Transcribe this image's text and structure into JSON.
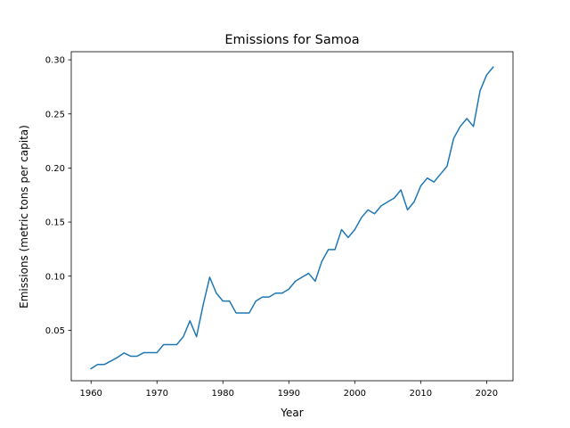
{
  "chart_data": {
    "type": "line",
    "title": "Emissions for Samoa",
    "xlabel": "Year",
    "ylabel": "Emissions (metric tons per capita)",
    "xlim": [
      1957,
      2024
    ],
    "ylim": [
      0.0033,
      0.3075
    ],
    "xticks": [
      1960,
      1970,
      1980,
      1990,
      2000,
      2010,
      2020
    ],
    "yticks": [
      0.05,
      0.1,
      0.15,
      0.2,
      0.25,
      0.3
    ],
    "ytick_labels": [
      "0.05",
      "0.10",
      "0.15",
      "0.20",
      "0.25",
      "0.30"
    ],
    "grid": false,
    "series_color": "#1f77b4",
    "x": [
      1960,
      1961,
      1962,
      1963,
      1964,
      1965,
      1966,
      1967,
      1968,
      1969,
      1970,
      1971,
      1972,
      1973,
      1974,
      1975,
      1976,
      1977,
      1978,
      1979,
      1980,
      1981,
      1982,
      1983,
      1984,
      1985,
      1986,
      1987,
      1988,
      1989,
      1990,
      1991,
      1992,
      1993,
      1994,
      1995,
      1996,
      1997,
      1998,
      1999,
      2000,
      2001,
      2002,
      2003,
      2004,
      2005,
      2006,
      2007,
      2008,
      2009,
      2010,
      2011,
      2012,
      2013,
      2014,
      2015,
      2016,
      2017,
      2018,
      2019,
      2020,
      2021
    ],
    "series": [
      {
        "values": [
          0.0145,
          0.0183,
          0.0183,
          0.0215,
          0.0248,
          0.029,
          0.026,
          0.026,
          0.0293,
          0.0293,
          0.0293,
          0.0367,
          0.0367,
          0.0367,
          0.044,
          0.0587,
          0.044,
          0.0733,
          0.099,
          0.0843,
          0.077,
          0.077,
          0.066,
          0.066,
          0.066,
          0.077,
          0.0807,
          0.0807,
          0.0843,
          0.0843,
          0.088,
          0.0953,
          0.099,
          0.1026,
          0.0953,
          0.1136,
          0.1246,
          0.1246,
          0.143,
          0.1357,
          0.143,
          0.154,
          0.1613,
          0.1577,
          0.165,
          0.1687,
          0.1723,
          0.1797,
          0.1613,
          0.1687,
          0.1833,
          0.1907,
          0.187,
          0.1943,
          0.2017,
          0.2274,
          0.2384,
          0.2457,
          0.2384,
          0.2713,
          0.286,
          0.2933
        ]
      }
    ]
  }
}
